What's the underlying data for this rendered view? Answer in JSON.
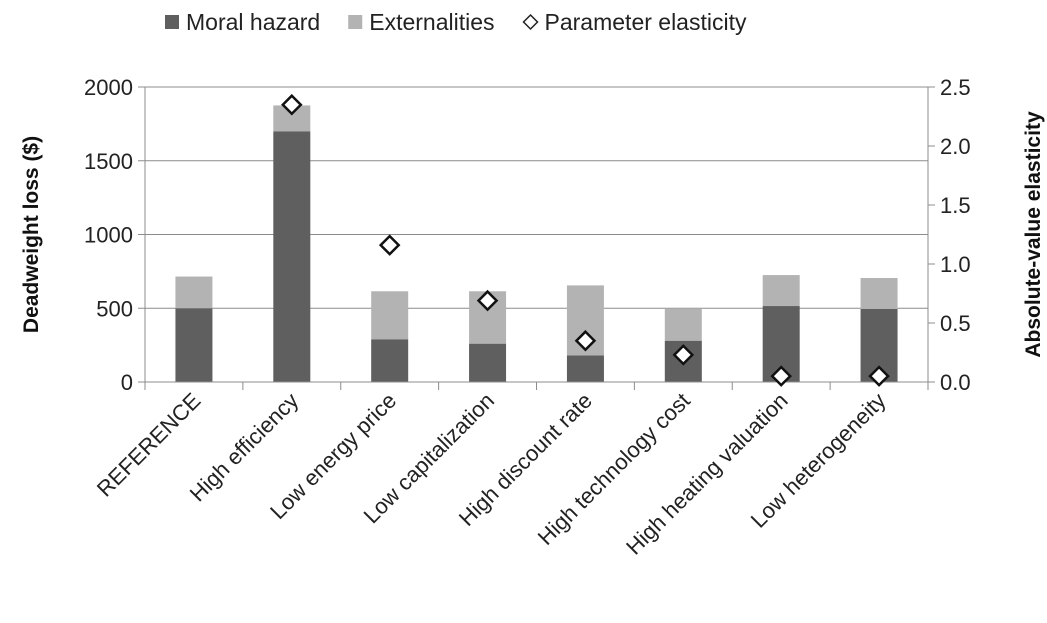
{
  "chart_data": {
    "type": "bar",
    "stacked": true,
    "categories": [
      "REFERENCE",
      "High efficiency",
      "Low energy price",
      "Low capitalization",
      "High discount rate",
      "High technology cost",
      "High heating valuation",
      "Low heterogeneity"
    ],
    "series": [
      {
        "name": "Moral hazard",
        "color": "#5f5f5f",
        "values": [
          500,
          1700,
          290,
          260,
          180,
          280,
          515,
          495
        ]
      },
      {
        "name": "Externalities",
        "color": "#b3b3b3",
        "values": [
          215,
          175,
          325,
          355,
          475,
          215,
          210,
          210
        ]
      }
    ],
    "secondary_series": {
      "name": "Parameter elasticity",
      "marker": "diamond",
      "axis": "right",
      "values": [
        null,
        2.35,
        1.16,
        0.69,
        0.35,
        0.23,
        0.05,
        0.05
      ]
    },
    "ylabel": "Deadweight loss ($)",
    "ylabel_right": "Absolute-value elasticity",
    "ylim": [
      0,
      2000
    ],
    "y_ticks": [
      "0",
      "500",
      "1000",
      "1500",
      "2000"
    ],
    "ylim_right": [
      0,
      2.5
    ],
    "y_ticks_right": [
      "0.0",
      "0.5",
      "1.0",
      "1.5",
      "2.0",
      "2.5"
    ],
    "grid": true,
    "legend_position": "top"
  }
}
